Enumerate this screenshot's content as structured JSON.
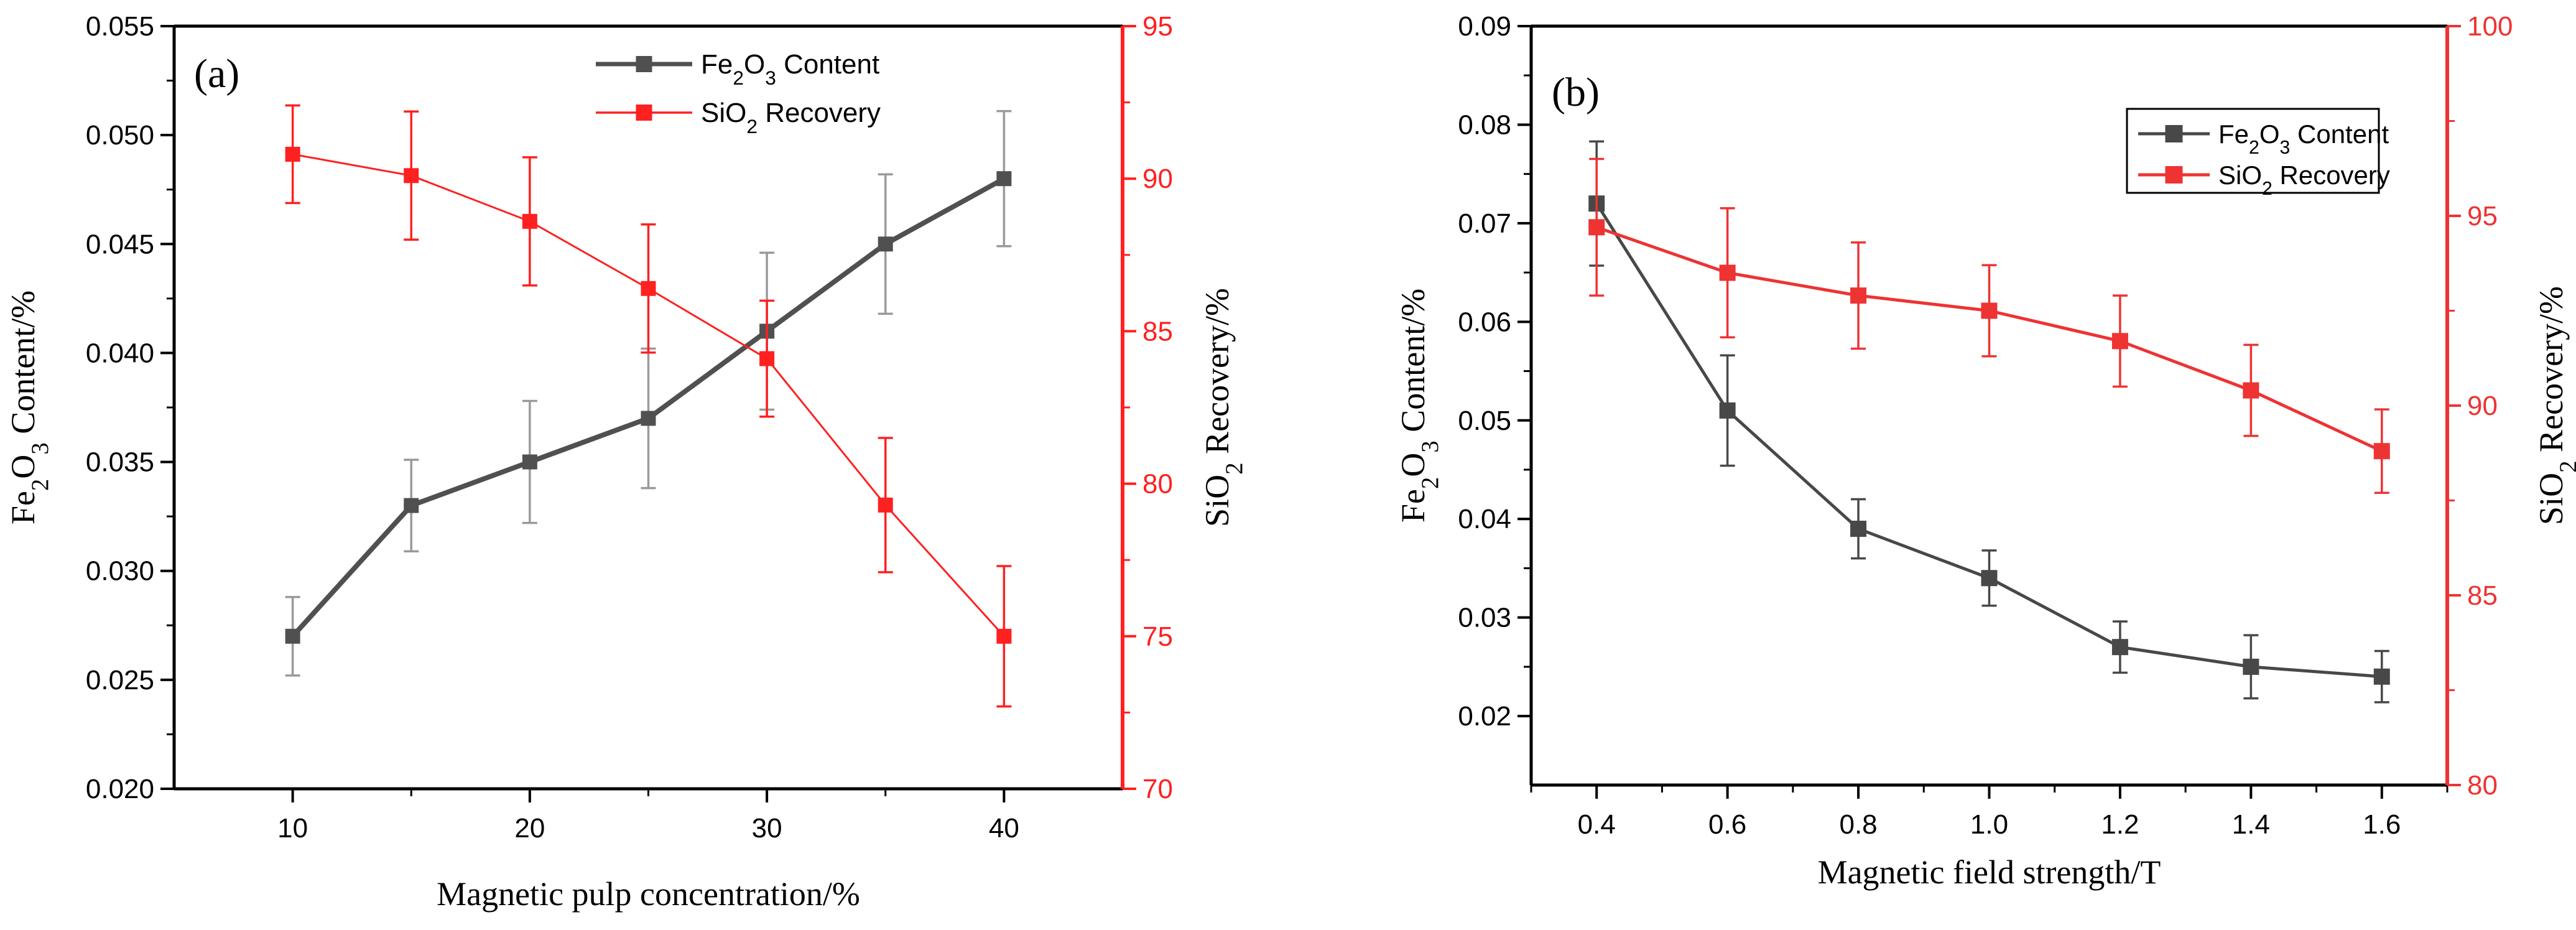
{
  "chart_data": [
    {
      "type": "line",
      "panel_label": "(a)",
      "xlabel": "Magnetic pulp concentration/%",
      "ylabel_left": {
        "pre": "Fe",
        "s1": "2",
        "mid": "O",
        "s2": "3",
        "post": " Content/%"
      },
      "ylabel_right": {
        "pre": "SiO",
        "s1": "2",
        "post": " Recovery/%"
      },
      "xlim": [
        5,
        45
      ],
      "xticks": [
        10,
        20,
        30,
        40
      ],
      "xtick_labels": [
        "10",
        "20",
        "30",
        "40"
      ],
      "ylim_left": [
        0.02,
        0.055
      ],
      "yticks_left": [
        0.02,
        0.025,
        0.03,
        0.035,
        0.04,
        0.045,
        0.05,
        0.055
      ],
      "ytick_labels_left": [
        "0.020",
        "0.025",
        "0.030",
        "0.035",
        "0.040",
        "0.045",
        "0.050",
        "0.055"
      ],
      "ylim_right": [
        70,
        95
      ],
      "yticks_right": [
        70,
        75,
        80,
        85,
        90,
        95
      ],
      "ytick_labels_right": [
        "70",
        "75",
        "80",
        "85",
        "90",
        "95"
      ],
      "legend_position": "top-center",
      "x": [
        10,
        15,
        20,
        25,
        30,
        35,
        40
      ],
      "series": [
        {
          "name": {
            "pre": "Fe",
            "s1": "2",
            "mid": "O",
            "s2": "3",
            "post": " Content"
          },
          "axis": "left",
          "color": "#505050",
          "errcolor": "#9a9a9a",
          "values": [
            0.027,
            0.033,
            0.035,
            0.037,
            0.041,
            0.045,
            0.048
          ],
          "errors": [
            0.0018,
            0.0021,
            0.0028,
            0.0032,
            0.0036,
            0.0032,
            0.0031
          ]
        },
        {
          "name": {
            "pre": "SiO",
            "s1": "2",
            "post": " Recovery"
          },
          "axis": "right",
          "color": "#ff2020",
          "errcolor": "#ff2020",
          "values": [
            90.8,
            90.1,
            88.6,
            86.4,
            84.1,
            79.3,
            75.0
          ],
          "errors": [
            1.6,
            2.1,
            2.1,
            2.1,
            1.9,
            2.2,
            2.3
          ]
        }
      ]
    },
    {
      "type": "line",
      "panel_label": "(b)",
      "xlabel": "Magnetic field strength/T",
      "ylabel_left": {
        "pre": "Fe",
        "s1": "2",
        "mid": "O",
        "s2": "3",
        "post": " Content/%"
      },
      "ylabel_right": {
        "pre": "SiO",
        "s1": "2",
        "post": " Recovery/%"
      },
      "xlim": [
        0.3,
        1.7
      ],
      "xticks": [
        0.4,
        0.6,
        0.8,
        1.0,
        1.2,
        1.4,
        1.6
      ],
      "xtick_labels": [
        "0.4",
        "0.6",
        "0.8",
        "1.0",
        "1.2",
        "1.4",
        "1.6"
      ],
      "ylim_left": [
        0.013,
        0.09
      ],
      "yticks_left": [
        0.02,
        0.03,
        0.04,
        0.05,
        0.06,
        0.07,
        0.08,
        0.09
      ],
      "ytick_labels_left": [
        "0.02",
        "0.03",
        "0.04",
        "0.05",
        "0.06",
        "0.07",
        "0.08",
        "0.09"
      ],
      "ylim_right": [
        80,
        100
      ],
      "yticks_right": [
        80,
        85,
        90,
        95,
        100
      ],
      "ytick_labels_right": [
        "80",
        "85",
        "90",
        "95",
        "100"
      ],
      "legend_position": "top-right",
      "x": [
        0.4,
        0.6,
        0.8,
        1.0,
        1.2,
        1.4,
        1.6
      ],
      "series": [
        {
          "name": {
            "pre": "Fe",
            "s1": "2",
            "mid": "O",
            "s2": "3",
            "post": " Content"
          },
          "axis": "left",
          "color": "#484848",
          "errcolor": "#484848",
          "values": [
            0.072,
            0.051,
            0.039,
            0.034,
            0.027,
            0.025,
            0.024
          ],
          "errors": [
            0.0063,
            0.0056,
            0.003,
            0.0028,
            0.0026,
            0.0032,
            0.0026
          ]
        },
        {
          "name": {
            "pre": "SiO",
            "s1": "2",
            "post": " Recovery"
          },
          "axis": "right",
          "color": "#ee3333",
          "errcolor": "#ee3333",
          "values": [
            94.7,
            93.5,
            92.9,
            92.5,
            91.7,
            90.4,
            88.8
          ],
          "errors": [
            1.8,
            1.7,
            1.4,
            1.2,
            1.2,
            1.2,
            1.1
          ]
        }
      ]
    }
  ]
}
